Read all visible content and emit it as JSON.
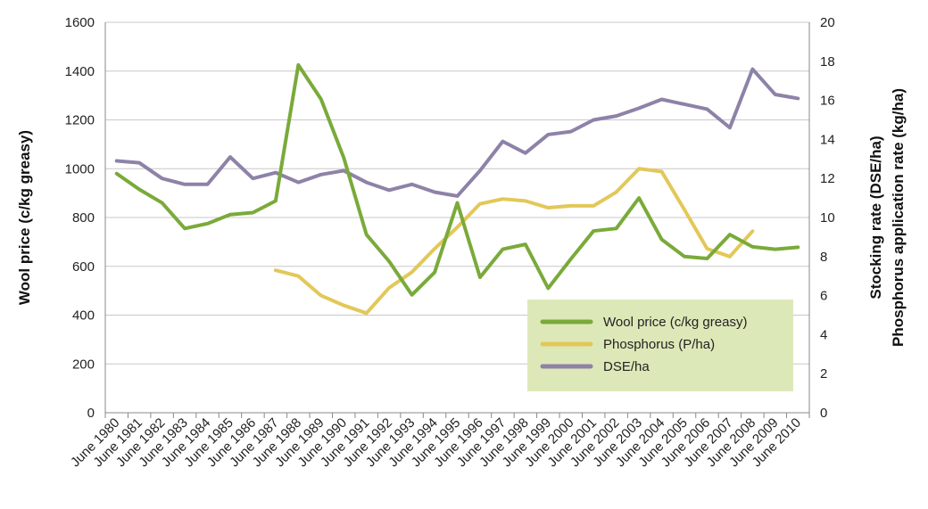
{
  "chart_data": {
    "type": "line",
    "categories": [
      "June 1980",
      "June 1981",
      "June 1982",
      "June 1983",
      "June 1984",
      "June 1985",
      "June 1986",
      "June 1987",
      "June 1988",
      "June 1989",
      "June 1990",
      "June 1991",
      "June 1992",
      "June 1993",
      "June 1994",
      "June 1995",
      "June 1996",
      "June 1997",
      "June 1998",
      "June 1999",
      "June 2000",
      "June 2001",
      "June 2002",
      "June 2003",
      "June 2004",
      "June 2005",
      "June 2006",
      "June 2007",
      "June 2008",
      "June 2009",
      "June 2010"
    ],
    "ylabel": "Wool price (c/kg greasy)",
    "y2label_line1": "Stocking rate (DSE/ha)",
    "y2label_line2": "Phosphorus application rate (kg/ha)",
    "ylim": [
      0,
      1600
    ],
    "y2lim": [
      0,
      20
    ],
    "yticks": [
      0,
      200,
      400,
      600,
      800,
      1000,
      1200,
      1400,
      1600
    ],
    "y2ticks": [
      0,
      2,
      4,
      6,
      8,
      10,
      12,
      14,
      16,
      18,
      20
    ],
    "grid": true,
    "legend_position": "bottom-right",
    "legend_bg": "#dde8b8",
    "series": [
      {
        "name": "Wool price (c/kg greasy)",
        "axis": "left",
        "color": "#7aaa3a",
        "values": [
          980,
          915,
          860,
          755,
          775,
          812,
          820,
          868,
          1425,
          1285,
          1045,
          730,
          620,
          483,
          575,
          860,
          555,
          670,
          690,
          510,
          630,
          745,
          755,
          880,
          710,
          640,
          632,
          730,
          680,
          670,
          678
        ]
      },
      {
        "name": "Phosphorus (P/ha)",
        "axis": "right",
        "color": "#e2c858",
        "values": [
          null,
          null,
          null,
          null,
          null,
          null,
          null,
          7.3,
          7.0,
          6.0,
          5.5,
          5.1,
          6.4,
          7.2,
          8.4,
          9.5,
          10.7,
          10.95,
          10.85,
          10.5,
          10.6,
          10.6,
          11.3,
          12.5,
          12.35,
          10.4,
          8.4,
          8.0,
          9.3,
          null,
          null
        ]
      },
      {
        "name": "DSE/ha",
        "axis": "right",
        "color": "#8e82a8",
        "values": [
          12.9,
          12.8,
          12.0,
          11.7,
          11.7,
          13.1,
          12.0,
          12.3,
          11.8,
          12.2,
          12.4,
          11.8,
          11.4,
          11.7,
          11.3,
          11.1,
          12.4,
          13.9,
          13.3,
          14.25,
          14.4,
          15.0,
          15.2,
          15.6,
          16.05,
          15.8,
          15.55,
          14.6,
          17.6,
          16.3,
          16.1
        ]
      }
    ]
  }
}
